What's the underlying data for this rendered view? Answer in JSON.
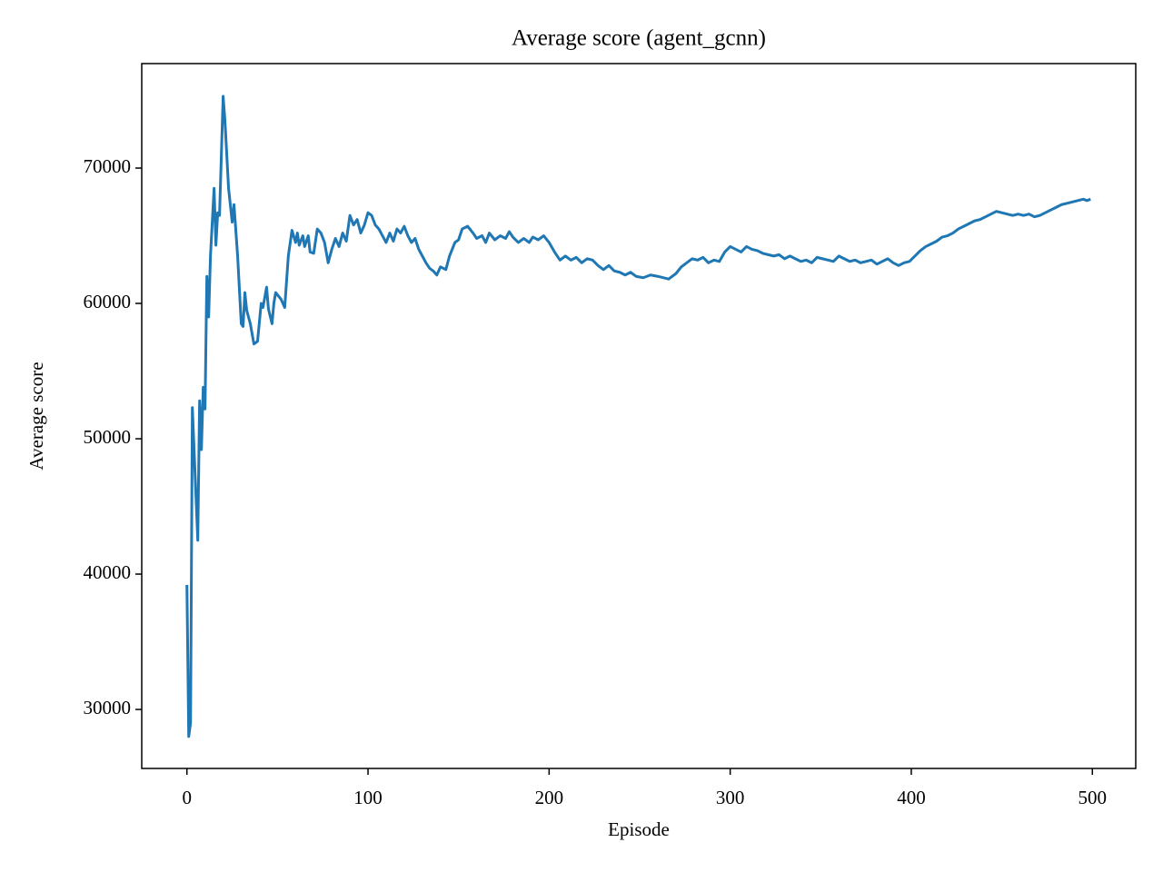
{
  "chart_data": {
    "type": "line",
    "title": "Average score (agent_gcnn)",
    "x_label": "Episode",
    "y_label": "Average score",
    "x": [
      0,
      1,
      2,
      3,
      6,
      7,
      8,
      9,
      10,
      11,
      12,
      13,
      15,
      16,
      17,
      18,
      20,
      21,
      23,
      25,
      26,
      28,
      30,
      31,
      32,
      33,
      35,
      37,
      39,
      41,
      42,
      44,
      45,
      47,
      48,
      49,
      52,
      54,
      56,
      58,
      60,
      61,
      62,
      64,
      65,
      67,
      68,
      70,
      72,
      74,
      76,
      78,
      80,
      82,
      84,
      86,
      88,
      90,
      92,
      94,
      96,
      98,
      100,
      102,
      104,
      106,
      108,
      110,
      112,
      114,
      116,
      118,
      120,
      122,
      124,
      126,
      128,
      130,
      132,
      134,
      136,
      138,
      140,
      143,
      145,
      148,
      150,
      152,
      155,
      158,
      160,
      163,
      165,
      167,
      170,
      173,
      176,
      178,
      180,
      183,
      186,
      189,
      191,
      194,
      197,
      200,
      203,
      206,
      209,
      212,
      215,
      218,
      221,
      224,
      227,
      230,
      233,
      236,
      239,
      242,
      245,
      248,
      252,
      256,
      260,
      263,
      266,
      270,
      273,
      276,
      279,
      282,
      285,
      288,
      291,
      294,
      297,
      300,
      303,
      306,
      309,
      312,
      315,
      318,
      321,
      324,
      327,
      330,
      333,
      336,
      339,
      342,
      345,
      348,
      351,
      354,
      357,
      360,
      363,
      366,
      369,
      372,
      375,
      378,
      381,
      384,
      387,
      390,
      393,
      396,
      399,
      402,
      405,
      408,
      411,
      414,
      417,
      420,
      423,
      426,
      429,
      432,
      435,
      438,
      441,
      444,
      447,
      450,
      453,
      456,
      459,
      462,
      465,
      468,
      471,
      474,
      477,
      480,
      483,
      486,
      489,
      492,
      495,
      497,
      499
    ],
    "series": [
      {
        "name": "Average score",
        "color": "#1f77b4",
        "values": [
          39200,
          28000,
          29000,
          52300,
          42500,
          52800,
          49200,
          53800,
          52200,
          62000,
          59000,
          63500,
          68500,
          64300,
          66700,
          66500,
          75300,
          73500,
          68500,
          66000,
          67300,
          63500,
          58500,
          58300,
          60800,
          59500,
          58500,
          57000,
          57200,
          60000,
          59700,
          61200,
          59600,
          58500,
          60000,
          60800,
          60300,
          59700,
          63500,
          65400,
          64500,
          65200,
          64300,
          65000,
          64200,
          65000,
          63800,
          63700,
          65500,
          65200,
          64500,
          63000,
          64000,
          64800,
          64200,
          65200,
          64600,
          66500,
          65800,
          66200,
          65200,
          65800,
          66700,
          66500,
          65800,
          65500,
          65000,
          64500,
          65200,
          64600,
          65500,
          65200,
          65700,
          65000,
          64500,
          64800,
          64000,
          63500,
          63000,
          62600,
          62400,
          62100,
          62700,
          62500,
          63500,
          64500,
          64700,
          65500,
          65700,
          65200,
          64800,
          65000,
          64500,
          65200,
          64700,
          65000,
          64800,
          65300,
          64900,
          64500,
          64800,
          64500,
          64900,
          64700,
          65000,
          64500,
          63800,
          63200,
          63500,
          63200,
          63400,
          63000,
          63300,
          63200,
          62800,
          62500,
          62800,
          62400,
          62300,
          62100,
          62300,
          62000,
          61900,
          62100,
          62000,
          61900,
          61800,
          62200,
          62700,
          63000,
          63300,
          63200,
          63400,
          63000,
          63200,
          63100,
          63800,
          64200,
          64000,
          63800,
          64200,
          64000,
          63900,
          63700,
          63600,
          63500,
          63600,
          63300,
          63500,
          63300,
          63100,
          63200,
          63000,
          63400,
          63300,
          63200,
          63100,
          63500,
          63300,
          63100,
          63200,
          63000,
          63100,
          63200,
          62900,
          63100,
          63300,
          63000,
          62800,
          63000,
          63100,
          63500,
          63900,
          64200,
          64400,
          64600,
          64900,
          65000,
          65200,
          65500,
          65700,
          65900,
          66100,
          66200,
          66400,
          66600,
          66800,
          66700,
          66600,
          66500,
          66600,
          66500,
          66600,
          66400,
          66500,
          66700,
          66900,
          67100,
          67300,
          67400,
          67500,
          67600,
          67700,
          67600,
          67700
        ]
      }
    ],
    "xlim": [
      -24.95,
      523.95
    ],
    "ylim": [
      25640,
      77720
    ],
    "xticks": [
      0,
      100,
      200,
      300,
      400,
      500
    ],
    "yticks": [
      30000,
      40000,
      50000,
      60000,
      70000
    ]
  }
}
